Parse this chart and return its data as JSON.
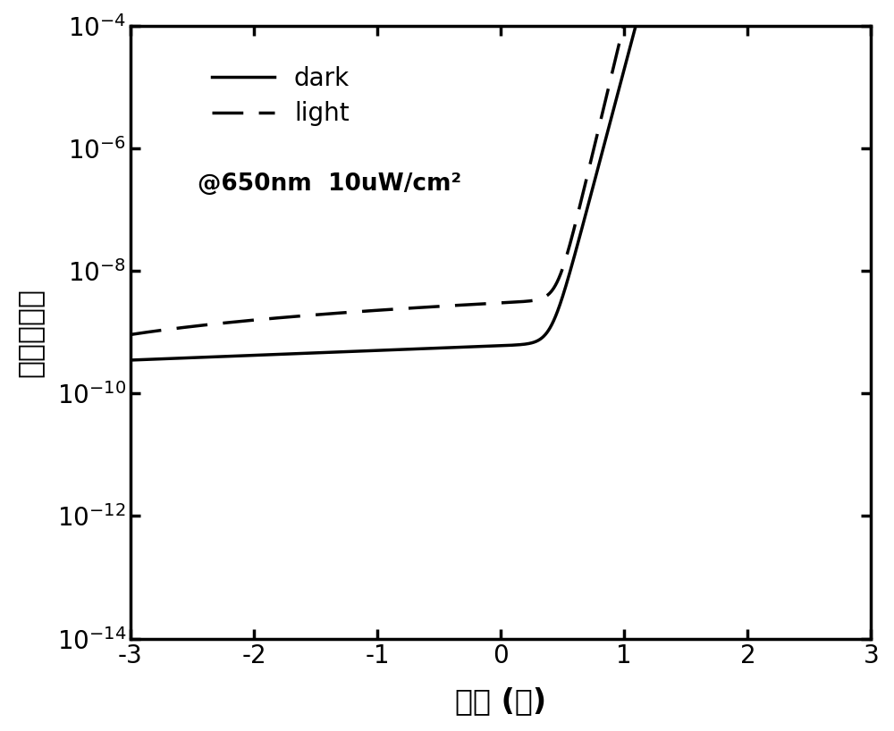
{
  "xlabel": "电压 (伏)",
  "ylabel": "电流（安）",
  "ylim_log": [
    -14,
    -4
  ],
  "xlim": [
    -3,
    3
  ],
  "xticks": [
    -3,
    -2,
    -1,
    0,
    1,
    2,
    3
  ],
  "legend_dark": "dark",
  "legend_light": "light",
  "annotation": "@650nm  10uW/cm²",
  "background_color": "#ffffff",
  "line_color": "#000000",
  "linewidth": 2.5,
  "dark_Is": 5e-13,
  "dark_n": 2.2,
  "dark_leak": 6e-10,
  "dark_leak_slope": 0.18,
  "light_Iph": 1.2e-08,
  "light_Is": 5e-13,
  "light_n": 2.0,
  "light_leak": 1.5e-08,
  "light_leak_slope": 0.05
}
